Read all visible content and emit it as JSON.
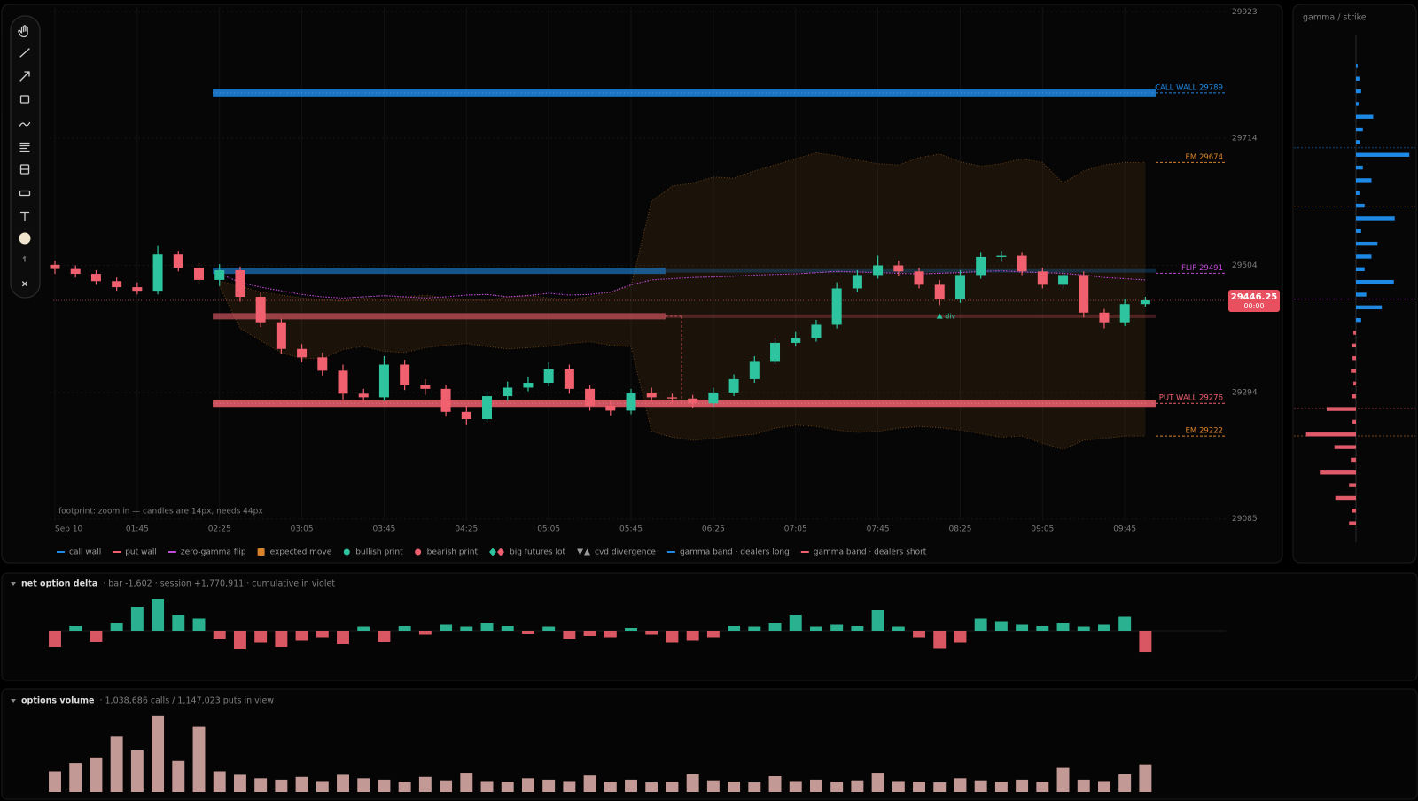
{
  "chart_data": [
    {
      "type": "candlestick",
      "x": [
        "01:05",
        "01:15",
        "01:25",
        "01:35",
        "01:45",
        "01:55",
        "02:05",
        "02:15",
        "02:25",
        "02:35",
        "02:45",
        "02:55",
        "03:05",
        "03:15",
        "03:25",
        "03:35",
        "03:45",
        "03:55",
        "04:05",
        "04:15",
        "04:25",
        "04:35",
        "04:45",
        "04:55",
        "05:05",
        "05:15",
        "05:25",
        "05:35",
        "05:45",
        "05:55",
        "06:05",
        "06:15",
        "06:25",
        "06:35",
        "06:45",
        "06:55",
        "07:05",
        "07:15",
        "07:25",
        "07:35",
        "07:45",
        "07:55",
        "08:05",
        "08:15",
        "08:25",
        "08:35",
        "08:45",
        "08:55",
        "09:05",
        "09:15",
        "09:25",
        "09:35",
        "09:45",
        "09:55"
      ],
      "open": [
        29505,
        29498,
        29490,
        29478,
        29468,
        29462,
        29522,
        29500,
        29480,
        29496,
        29452,
        29410,
        29366,
        29352,
        29330,
        29292,
        29286,
        29340,
        29306,
        29300,
        29262,
        29250,
        29288,
        29302,
        29310,
        29332,
        29300,
        29272,
        29264,
        29294,
        29286,
        29284,
        29276,
        29294,
        29316,
        29346,
        29376,
        29384,
        29406,
        29466,
        29488,
        29504,
        29494,
        29472,
        29448,
        29488,
        29518,
        29520,
        29494,
        29472,
        29488,
        29426,
        29410,
        29440
      ],
      "high": [
        29512,
        29504,
        29496,
        29484,
        29476,
        29536,
        29528,
        29508,
        29506,
        29502,
        29460,
        29416,
        29374,
        29360,
        29340,
        29300,
        29354,
        29348,
        29316,
        29306,
        29272,
        29296,
        29312,
        29320,
        29344,
        29340,
        29306,
        29280,
        29300,
        29302,
        29292,
        29290,
        29302,
        29324,
        29354,
        29384,
        29394,
        29414,
        29476,
        29496,
        29520,
        29512,
        29500,
        29480,
        29496,
        29526,
        29528,
        29526,
        29500,
        29496,
        29494,
        29432,
        29448,
        29452
      ],
      "low": [
        29490,
        29484,
        29472,
        29462,
        29456,
        29456,
        29494,
        29474,
        29470,
        29444,
        29402,
        29358,
        29344,
        29322,
        29282,
        29278,
        29280,
        29298,
        29290,
        29254,
        29240,
        29244,
        29280,
        29296,
        29304,
        29292,
        29264,
        29256,
        29258,
        29278,
        29276,
        29268,
        29270,
        29288,
        29310,
        29340,
        29370,
        29378,
        29400,
        29460,
        29482,
        29486,
        29466,
        29438,
        29442,
        29482,
        29510,
        29488,
        29466,
        29466,
        29418,
        29400,
        29404,
        29436
      ],
      "close": [
        29498,
        29490,
        29478,
        29468,
        29462,
        29522,
        29500,
        29480,
        29496,
        29452,
        29410,
        29366,
        29352,
        29330,
        29292,
        29286,
        29340,
        29306,
        29300,
        29262,
        29250,
        29288,
        29302,
        29310,
        29332,
        29300,
        29272,
        29264,
        29294,
        29286,
        29284,
        29276,
        29294,
        29316,
        29346,
        29376,
        29384,
        29406,
        29466,
        29488,
        29504,
        29494,
        29472,
        29448,
        29488,
        29518,
        29520,
        29494,
        29472,
        29488,
        29426,
        29410,
        29440,
        29446.25
      ],
      "up_color": "#2ec4a0",
      "down_color": "#f0606e",
      "ylim": [
        29085,
        29923
      ],
      "yticks": [
        29923,
        29714,
        29504,
        29294,
        29085
      ],
      "xticks": [
        {
          "value": "01:05",
          "label": "Sep 10"
        },
        "01:45",
        "02:25",
        "03:05",
        "03:45",
        "04:25",
        "05:05",
        "05:45",
        "06:25",
        "07:05",
        "07:45",
        "08:25",
        "09:05",
        "09:45"
      ],
      "grid": true,
      "levels": [
        {
          "value": 29789,
          "label": "CALL WALL 29789",
          "color": "#1e88e5",
          "band": true
        },
        {
          "value": 29674,
          "label": "EM 29674",
          "color": "#d9822b",
          "band": false
        },
        {
          "value": 29491,
          "label": "FLIP 29491",
          "color": "#c04ad8",
          "band": false
        },
        {
          "value": 29276,
          "label": "PUT WALL 29276",
          "color": "#f0606e",
          "band": true
        },
        {
          "value": 29222,
          "label": "EM 29222",
          "color": "#d9822b",
          "band": false
        }
      ],
      "bands": [
        {
          "value": 29495,
          "color": "#1e88e5"
        },
        {
          "value": 29420,
          "color": "#f0606e"
        }
      ],
      "flip_line": {
        "color": "#c04ad8",
        "values": [
          null,
          null,
          null,
          null,
          null,
          null,
          null,
          null,
          29490,
          29476,
          29468,
          29462,
          29456,
          29452,
          29450,
          29452,
          29454,
          29452,
          29450,
          29452,
          29455,
          29456,
          29452,
          29454,
          29458,
          29455,
          29456,
          29460,
          29472,
          29480,
          29482,
          29484,
          29485,
          29486,
          29488,
          29489,
          29490,
          29492,
          29494,
          29493,
          29492,
          29491,
          29490,
          29491,
          29492,
          29494,
          29495,
          29493,
          29492,
          29491,
          29488,
          29484,
          29482,
          29480
        ]
      },
      "em_color": "#d9822b",
      "em_upper": [
        null,
        null,
        null,
        null,
        null,
        null,
        null,
        null,
        29478,
        29470,
        29460,
        29455,
        29450,
        29448,
        29445,
        29450,
        29448,
        29452,
        29455,
        29450,
        29448,
        29446,
        29452,
        29455,
        29450,
        29448,
        29452,
        29460,
        29470,
        29610,
        29635,
        29640,
        29650,
        29648,
        29660,
        29670,
        29680,
        29690,
        29685,
        29678,
        29672,
        29670,
        29682,
        29688,
        29675,
        29668,
        29672,
        29680,
        29674,
        29640,
        29660,
        29670,
        29674,
        29674
      ],
      "em_lower": [
        null,
        null,
        null,
        null,
        null,
        null,
        null,
        null,
        29470,
        29400,
        29380,
        29360,
        29350,
        29350,
        29365,
        29370,
        29362,
        29360,
        29368,
        29372,
        29375,
        29370,
        29366,
        29368,
        29370,
        29375,
        29378,
        29372,
        29370,
        29230,
        29220,
        29215,
        29218,
        29222,
        29225,
        29235,
        29240,
        29238,
        29232,
        29228,
        29230,
        29235,
        29238,
        29236,
        29232,
        29226,
        29220,
        29222,
        29210,
        29200,
        29215,
        29218,
        29222,
        29222
      ],
      "last_price": 29446.25,
      "countdown": "00:00",
      "divergences": [
        {
          "x": "08:15",
          "label": "div",
          "color": "#2ec4a0"
        }
      ],
      "note": "footprint: zoom in — candles are 14px, needs 44px",
      "legend": [
        {
          "name": "call wall",
          "color": "#1e88e5",
          "marker": "line"
        },
        {
          "name": "put wall",
          "color": "#f0606e",
          "marker": "line"
        },
        {
          "name": "zero-gamma flip",
          "color": "#c04ad8",
          "marker": "line"
        },
        {
          "name": "expected move",
          "color": "#d9822b",
          "marker": "square"
        },
        {
          "name": "bullish print",
          "color": "#2ec4a0",
          "marker": "dot"
        },
        {
          "name": "bearish print",
          "color": "#f0606e",
          "marker": "dot"
        },
        {
          "name": "big futures lot",
          "color": [
            "#2ec4a0",
            "#f0606e"
          ],
          "marker": "diamonds"
        },
        {
          "name": "cvd divergence",
          "color": "#9a9a9a",
          "marker": "triangles"
        },
        {
          "name": "gamma band · dealers long",
          "color": "#1e88e5",
          "marker": "line"
        },
        {
          "name": "gamma band · dealers short",
          "color": "#f0606e",
          "marker": "line"
        }
      ]
    },
    {
      "type": "bar",
      "title": "net option delta",
      "detail": "· bar -1,602 · session +1,770,911 · cumulative in violet",
      "values": [
        -1200,
        400,
        -800,
        600,
        1800,
        2400,
        1200,
        900,
        -600,
        -1400,
        -900,
        -1200,
        -700,
        -500,
        -1000,
        300,
        -800,
        400,
        -300,
        500,
        300,
        600,
        400,
        -200,
        300,
        -600,
        -400,
        -500,
        200,
        -300,
        -900,
        -700,
        -500,
        400,
        300,
        600,
        1200,
        300,
        500,
        400,
        1600,
        300,
        -500,
        -1300,
        -900,
        900,
        700,
        500,
        400,
        600,
        300,
        500,
        1100,
        -1602
      ],
      "ylim": [
        -3000,
        3000
      ],
      "pos_color": "#2ec4a0",
      "neg_color": "#f0606e"
    },
    {
      "type": "bar",
      "title": "options volume",
      "detail": "· 1,038,686 calls / 1,147,023 puts in view",
      "values": [
        3000,
        4200,
        5000,
        8000,
        6000,
        11000,
        4500,
        9500,
        3000,
        2500,
        2000,
        1800,
        2200,
        1600,
        2500,
        2000,
        1800,
        1500,
        2200,
        1700,
        2800,
        1600,
        1500,
        2000,
        1800,
        1600,
        2400,
        1500,
        1800,
        1400,
        1500,
        2600,
        1700,
        1500,
        1400,
        2300,
        1600,
        1800,
        1500,
        1700,
        2800,
        1600,
        1500,
        1400,
        2000,
        1700,
        1500,
        1800,
        1500,
        3500,
        1800,
        1600,
        2600,
        4000
      ],
      "ylim": [
        0,
        12000
      ],
      "color": "#d8aaa5"
    },
    {
      "type": "hbar",
      "title": "gamma / strike",
      "strikes": [
        29950,
        29925,
        29900,
        29875,
        29850,
        29825,
        29800,
        29775,
        29750,
        29725,
        29700,
        29675,
        29650,
        29625,
        29600,
        29575,
        29550,
        29525,
        29500,
        29475,
        29450,
        29425,
        29400,
        29375,
        29350,
        29325,
        29300,
        29275,
        29250,
        29225,
        29200,
        29175,
        29150,
        29125,
        29100,
        29075,
        29050
      ],
      "values": [
        2,
        4,
        6,
        3,
        20,
        8,
        5,
        62,
        8,
        18,
        4,
        10,
        45,
        6,
        25,
        18,
        10,
        44,
        12,
        30,
        6,
        -3,
        -5,
        -4,
        -6,
        -3,
        -5,
        -34,
        -4,
        -58,
        -25,
        -6,
        -42,
        -8,
        -24,
        -5,
        -8
      ],
      "ylim": [
        29025,
        29975
      ],
      "xlim": [
        -70,
        70
      ],
      "pos_color": "#1e88e5",
      "neg_color": "#e05a6a"
    }
  ]
}
